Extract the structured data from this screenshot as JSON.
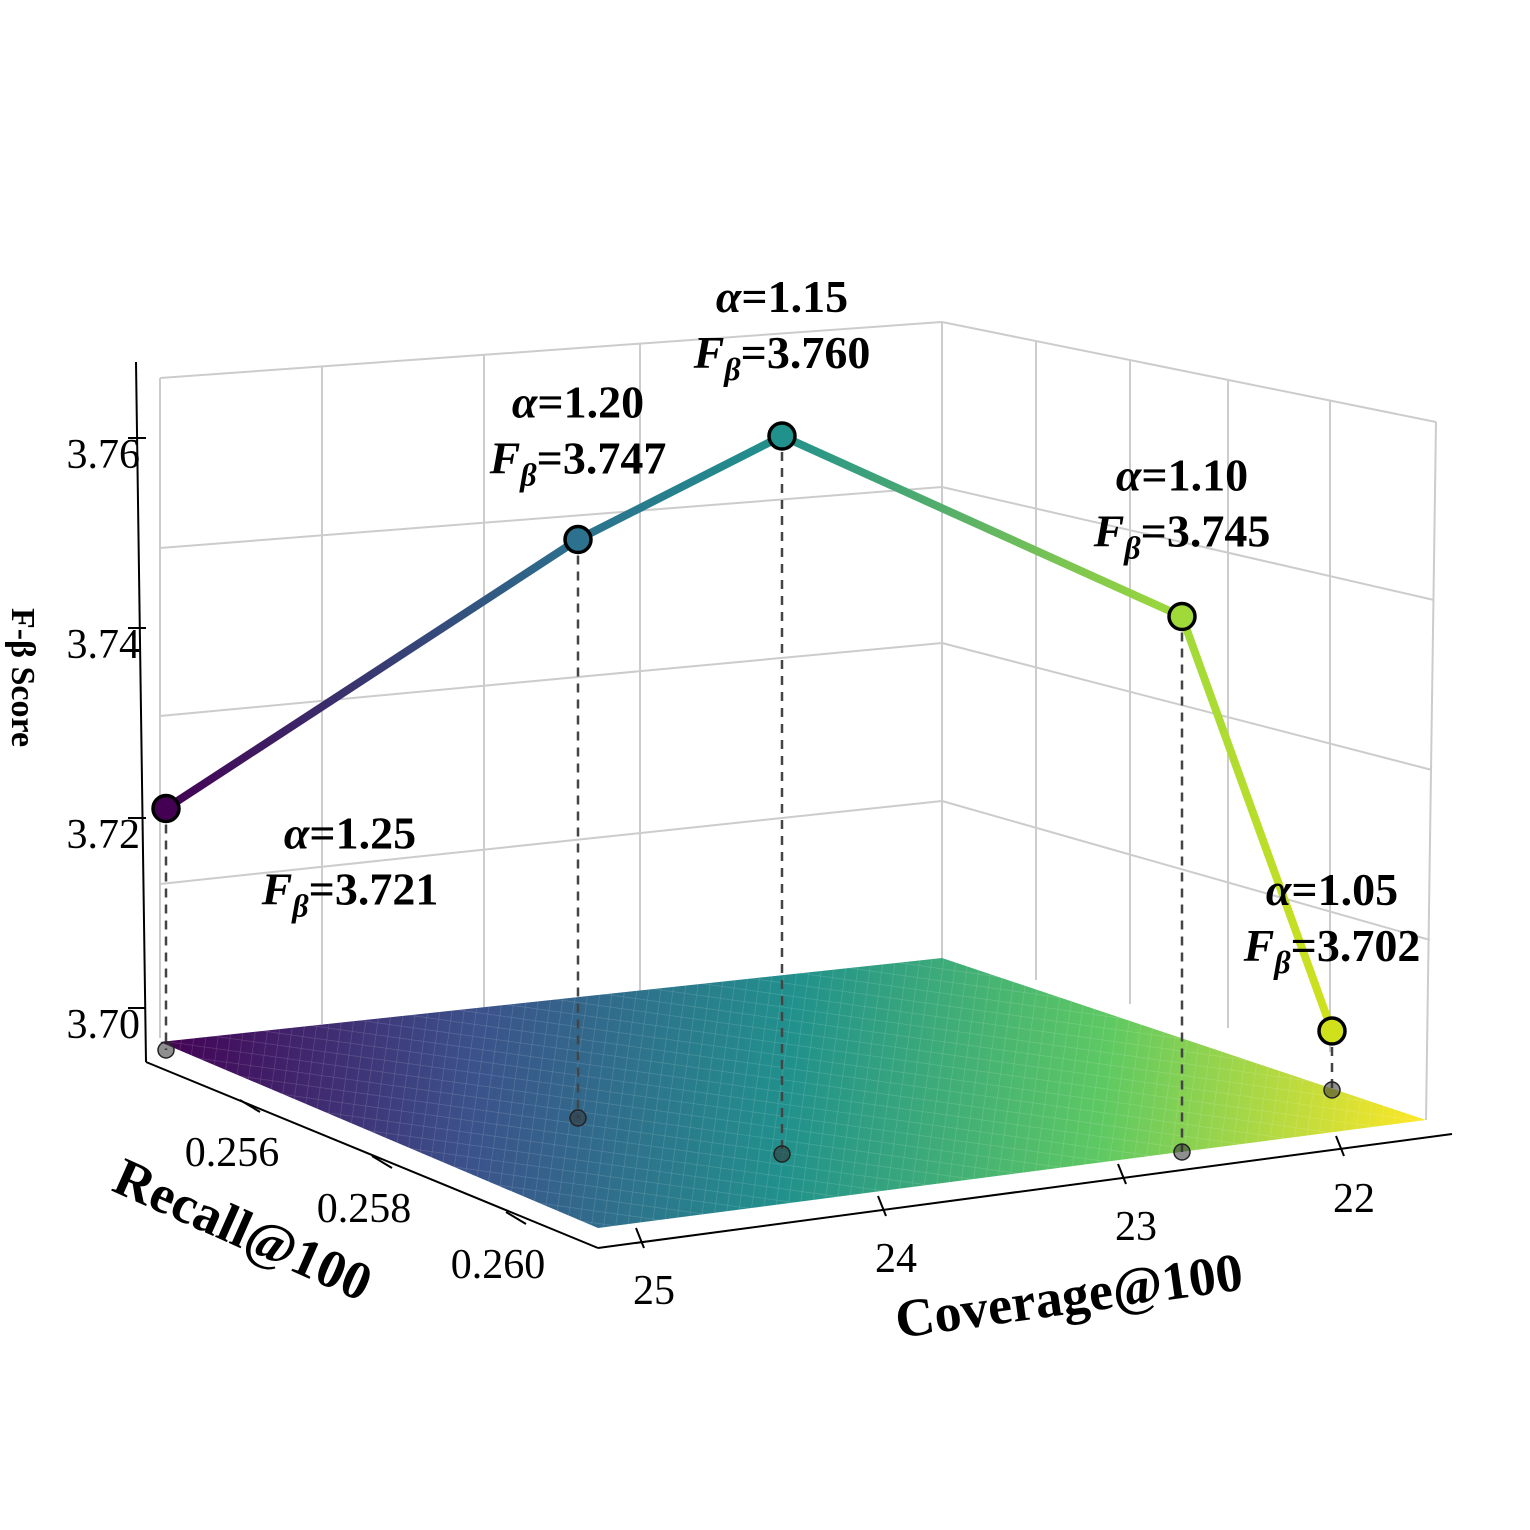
{
  "chart_data": {
    "type": "line",
    "projection": "3d",
    "surface_colormap": "viridis",
    "x_axis": {
      "label": "Coverage@100",
      "ticks": [
        "25",
        "24",
        "23",
        "22"
      ],
      "tick_values": [
        25,
        24,
        23,
        22
      ]
    },
    "y_axis": {
      "label": "Recall@100",
      "ticks": [
        "0.256",
        "0.258",
        "0.260"
      ],
      "tick_values": [
        0.256,
        0.258,
        0.26
      ]
    },
    "z_axis": {
      "label": "F-β Score",
      "ticks": [
        "3.70",
        "3.72",
        "3.74",
        "3.76"
      ],
      "tick_values": [
        3.7,
        3.72,
        3.74,
        3.76
      ]
    },
    "points": [
      {
        "alpha": "1.25",
        "f_beta": "3.721",
        "f_value": 3.721,
        "color": "#440154"
      },
      {
        "alpha": "1.20",
        "f_beta": "3.747",
        "f_value": 3.747,
        "color": "#2c718e"
      },
      {
        "alpha": "1.15",
        "f_beta": "3.760",
        "f_value": 3.76,
        "color": "#21918c"
      },
      {
        "alpha": "1.10",
        "f_beta": "3.745",
        "f_value": 3.745,
        "color": "#a0da39"
      },
      {
        "alpha": "1.05",
        "f_beta": "3.702",
        "f_value": 3.702,
        "color": "#d0e11c"
      }
    ],
    "annotation_prefix_alpha": "α",
    "annotation_prefix_f": "F",
    "annotation_sub_f": "β",
    "grid": true
  }
}
